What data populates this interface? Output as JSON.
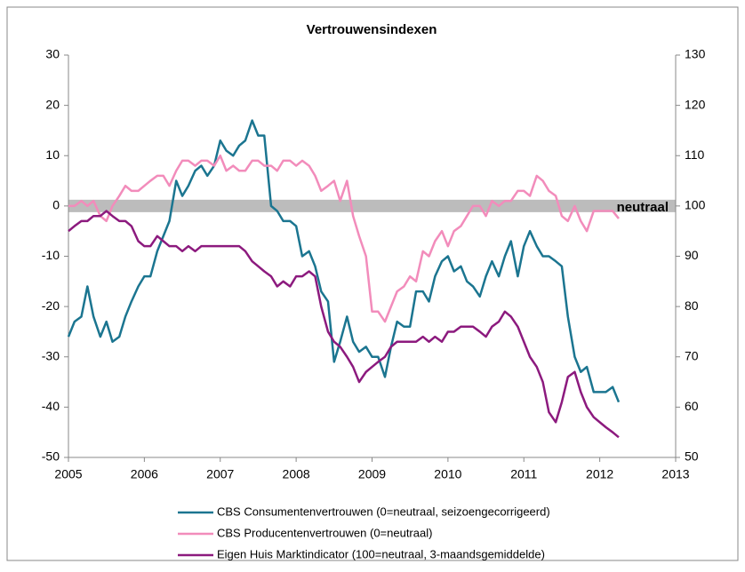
{
  "chart_data": {
    "type": "line",
    "title": "Vertrouwensindexen",
    "x": [
      2005,
      2005.08,
      2005.17,
      2005.25,
      2005.33,
      2005.42,
      2005.5,
      2005.58,
      2005.67,
      2005.75,
      2005.83,
      2005.92,
      2006,
      2006.08,
      2006.17,
      2006.25,
      2006.33,
      2006.42,
      2006.5,
      2006.58,
      2006.67,
      2006.75,
      2006.83,
      2006.92,
      2007,
      2007.08,
      2007.17,
      2007.25,
      2007.33,
      2007.42,
      2007.5,
      2007.58,
      2007.67,
      2007.75,
      2007.83,
      2007.92,
      2008,
      2008.08,
      2008.17,
      2008.25,
      2008.33,
      2008.42,
      2008.5,
      2008.58,
      2008.67,
      2008.75,
      2008.83,
      2008.92,
      2009,
      2009.08,
      2009.17,
      2009.25,
      2009.33,
      2009.42,
      2009.5,
      2009.58,
      2009.67,
      2009.75,
      2009.83,
      2009.92,
      2010,
      2010.08,
      2010.17,
      2010.25,
      2010.33,
      2010.42,
      2010.5,
      2010.58,
      2010.67,
      2010.75,
      2010.83,
      2010.92,
      2011,
      2011.08,
      2011.17,
      2011.25,
      2011.33,
      2011.42,
      2011.5,
      2011.58,
      2011.67,
      2011.75,
      2011.83,
      2011.92,
      2012,
      2012.08,
      2012.17,
      2012.25
    ],
    "series": [
      {
        "name": "CBS Consumentenvertrouwen (0=neutraal, seizoengecorrigeerd)",
        "color": "#1b7590",
        "axis": "y",
        "values": [
          -26,
          -23,
          -22,
          -16,
          -22,
          -26,
          -23,
          -27,
          -26,
          -22,
          -19,
          -16,
          -14,
          -14,
          -9,
          -6,
          -3,
          5,
          2,
          4,
          7,
          8,
          6,
          8,
          13,
          11,
          10,
          12,
          13,
          17,
          14,
          14,
          0,
          -1,
          -3,
          -3,
          -4,
          -10,
          -9,
          -12,
          -17,
          -19,
          -31,
          -27,
          -22,
          -27,
          -29,
          -28,
          -30,
          -30,
          -34,
          -28,
          -23,
          -24,
          -24,
          -17,
          -17,
          -19,
          -14,
          -11,
          -10,
          -13,
          -12,
          -15,
          -16,
          -18,
          -14,
          -11,
          -14,
          -10,
          -7,
          -14,
          -8,
          -5,
          -8,
          -10,
          -10,
          -11,
          -12,
          -22,
          -30,
          -33,
          -32,
          -37,
          -37,
          -37,
          -36,
          -39
        ]
      },
      {
        "name": "CBS Producentenvertrouwen (0=neutraal)",
        "color": "#f28cbb",
        "axis": "y",
        "values": [
          0,
          0,
          1,
          0,
          1,
          -2,
          -3,
          0,
          2,
          4,
          3,
          3,
          4,
          5,
          6,
          6,
          4,
          7,
          9,
          9,
          8,
          9,
          9,
          8,
          10,
          7,
          8,
          7,
          7,
          9,
          9,
          8,
          8,
          7,
          9,
          9,
          8,
          9,
          8,
          6,
          3,
          4,
          5,
          1,
          5,
          -2,
          -6,
          -10,
          -21,
          -21,
          -23,
          -20,
          -17,
          -16,
          -14,
          -15,
          -9,
          -10,
          -7,
          -5,
          -8,
          -5,
          -4,
          -2,
          0,
          0,
          -2,
          1,
          0,
          1,
          1,
          3,
          3,
          2,
          6,
          5,
          3,
          2,
          -2,
          -3,
          0,
          -3,
          -5,
          -1,
          -1,
          -1,
          -1,
          -2.5
        ]
      },
      {
        "name": "Eigen Huis Marktindicator (100=neutraal, 3-maandsgemiddelde)",
        "color": "#8c1a7e",
        "axis": "y2",
        "values": [
          95,
          96,
          97,
          97,
          98,
          98,
          99,
          98,
          97,
          97,
          96,
          93,
          92,
          92,
          94,
          93,
          92,
          92,
          91,
          92,
          91,
          92,
          92,
          92,
          92,
          92,
          92,
          92,
          91,
          89,
          88,
          87,
          86,
          84,
          85,
          84,
          86,
          86,
          87,
          86,
          80,
          75,
          73,
          72,
          70,
          68,
          65,
          67,
          68,
          69,
          70,
          72,
          73,
          73,
          73,
          73,
          74,
          73,
          74,
          73,
          75,
          75,
          76,
          76,
          76,
          75,
          74,
          76,
          77,
          79,
          78,
          76,
          73,
          70,
          68,
          65,
          59,
          57,
          61,
          66,
          67,
          63,
          60,
          58,
          57,
          56,
          55,
          54
        ]
      }
    ],
    "neutral": {
      "value": 0,
      "label": "neutraal"
    },
    "xlim": [
      2005,
      2013
    ],
    "xticks": [
      2005,
      2006,
      2007,
      2008,
      2009,
      2010,
      2011,
      2012,
      2013
    ],
    "ylim": [
      -50,
      30
    ],
    "yticks": [
      -50,
      -40,
      -30,
      -20,
      -10,
      0,
      10,
      20,
      30
    ],
    "y2lim": [
      50,
      130
    ],
    "y2ticks": [
      50,
      60,
      70,
      80,
      90,
      100,
      110,
      120,
      130
    ],
    "grid": false,
    "legend": "bottom"
  }
}
